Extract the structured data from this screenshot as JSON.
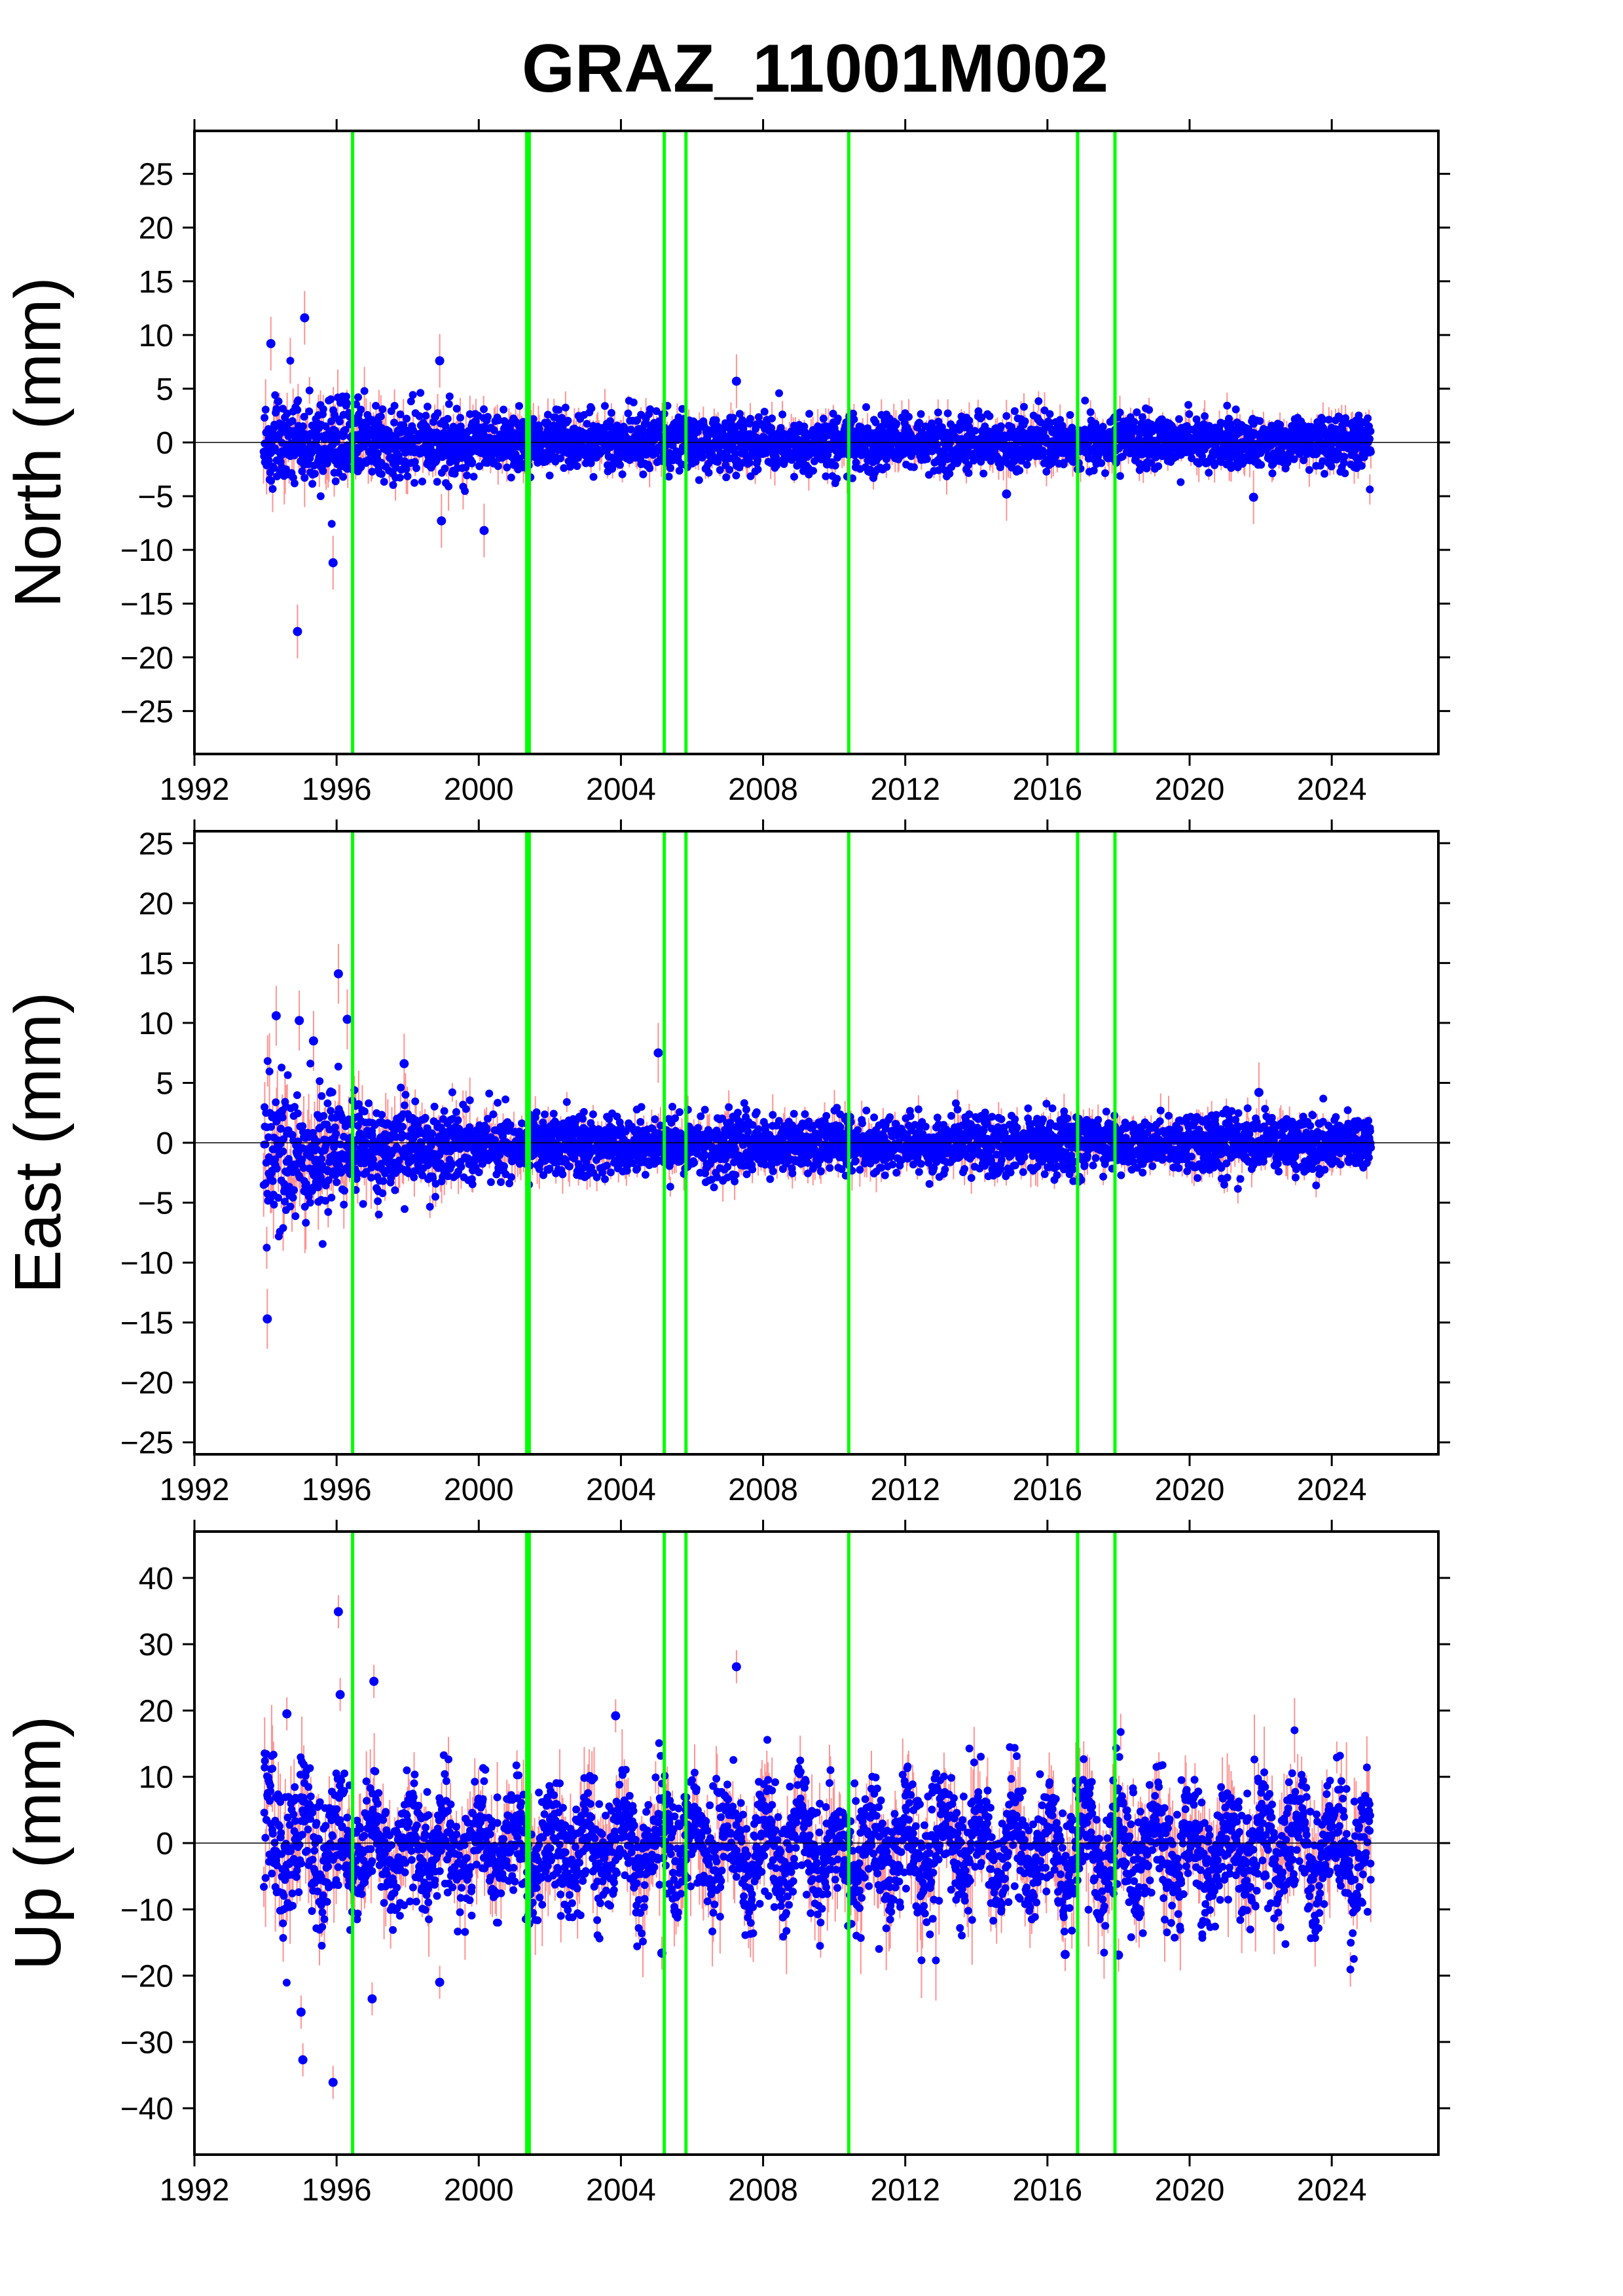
{
  "chart_data": {
    "type": "scatter",
    "title": "GRAZ_11001M002",
    "x_ticks": [
      "1992",
      "1996",
      "2000",
      "2004",
      "2008",
      "2012",
      "2016",
      "2020",
      "2024"
    ],
    "x_tick_values": [
      1992,
      1996,
      2000,
      2004,
      2008,
      2012,
      2016,
      2020,
      2024
    ],
    "xlim": [
      1992,
      2027
    ],
    "data_span": [
      1993.95,
      2025.1
    ],
    "point_color": "#0000ff",
    "error_bar_color": "#ff8080",
    "event_line_color": "#00ff00",
    "event_lines": [
      1996.45,
      2001.35,
      2001.42,
      2005.22,
      2005.83,
      2010.41,
      2016.85,
      2017.9
    ],
    "zero_line": true,
    "panels": [
      {
        "ylabel": "North (mm)",
        "ylim": [
          -29,
          29
        ],
        "y_ticks": [
          "25",
          "20",
          "15",
          "10",
          "5",
          "0",
          "−5",
          "−10",
          "−15",
          "−20",
          "−25"
        ],
        "y_tick_values": [
          25,
          20,
          15,
          10,
          5,
          0,
          -5,
          -10,
          -15,
          -20,
          -25
        ],
        "scatter_envelope": [
          {
            "x": 1994.0,
            "upper": 5,
            "lower": -5
          },
          {
            "x": 1996.5,
            "upper": 4,
            "lower": -4
          },
          {
            "x": 2001.4,
            "upper": 3,
            "lower": -3
          },
          {
            "x": 2025.1,
            "upper": 2.5,
            "lower": -2.5
          }
        ],
        "outliers": [
          {
            "x": 1994.15,
            "y": 9.2
          },
          {
            "x": 1994.9,
            "y": -17.6
          },
          {
            "x": 1995.1,
            "y": 11.6
          },
          {
            "x": 1995.9,
            "y": -11.2
          },
          {
            "x": 1998.9,
            "y": 7.6
          },
          {
            "x": 1998.95,
            "y": -7.3
          },
          {
            "x": 2000.15,
            "y": -8.2
          },
          {
            "x": 2007.25,
            "y": 5.7
          },
          {
            "x": 2014.85,
            "y": -4.8
          },
          {
            "x": 2021.8,
            "y": -5.1
          }
        ]
      },
      {
        "ylabel": "East (mm)",
        "ylim": [
          -26,
          26
        ],
        "y_ticks": [
          "25",
          "20",
          "15",
          "10",
          "5",
          "0",
          "−5",
          "−10",
          "−15",
          "−20",
          "−25"
        ],
        "y_tick_values": [
          25,
          20,
          15,
          10,
          5,
          0,
          -5,
          -10,
          -15,
          -20,
          -25
        ],
        "scatter_envelope": [
          {
            "x": 1994.0,
            "upper": 6,
            "lower": -8
          },
          {
            "x": 1996.5,
            "upper": 4,
            "lower": -5
          },
          {
            "x": 2001.4,
            "upper": 2.5,
            "lower": -3
          },
          {
            "x": 2025.1,
            "upper": 2.5,
            "lower": -2.5
          }
        ],
        "outliers": [
          {
            "x": 1994.05,
            "y": -14.7
          },
          {
            "x": 1994.3,
            "y": 10.6
          },
          {
            "x": 1994.95,
            "y": 10.2
          },
          {
            "x": 1995.35,
            "y": 8.5
          },
          {
            "x": 1996.05,
            "y": 14.1
          },
          {
            "x": 1996.3,
            "y": 10.3
          },
          {
            "x": 1997.9,
            "y": 6.6
          },
          {
            "x": 2005.05,
            "y": 7.5
          },
          {
            "x": 2021.95,
            "y": 4.2
          }
        ]
      },
      {
        "ylabel": "Up (mm)",
        "ylim": [
          -47,
          47
        ],
        "y_ticks": [
          "40",
          "30",
          "20",
          "10",
          "0",
          "−10",
          "−20",
          "−30",
          "−40"
        ],
        "y_tick_values": [
          40,
          30,
          20,
          10,
          0,
          -10,
          -20,
          -30,
          -40
        ],
        "scatter_envelope": [
          {
            "x": 1994.0,
            "upper": 12,
            "lower": -12
          },
          {
            "x": 1996.5,
            "upper": 9,
            "lower": -10
          },
          {
            "x": 2001.4,
            "upper": 9,
            "lower": -10
          },
          {
            "x": 2025.1,
            "upper": 10,
            "lower": -12
          }
        ],
        "outliers": [
          {
            "x": 1994.6,
            "y": 19.5
          },
          {
            "x": 1995.0,
            "y": -25.5
          },
          {
            "x": 1995.05,
            "y": -32.7
          },
          {
            "x": 1995.9,
            "y": -36.1
          },
          {
            "x": 1996.05,
            "y": 34.9
          },
          {
            "x": 1996.1,
            "y": 22.4
          },
          {
            "x": 1997.05,
            "y": 24.4
          },
          {
            "x": 1997.0,
            "y": -23.5
          },
          {
            "x": 1998.9,
            "y": -21.0
          },
          {
            "x": 2003.85,
            "y": 19.2
          },
          {
            "x": 2005.15,
            "y": -16.6
          },
          {
            "x": 2007.25,
            "y": 26.6
          },
          {
            "x": 2016.5,
            "y": -16.8
          },
          {
            "x": 2018.0,
            "y": -16.9
          }
        ]
      }
    ]
  }
}
